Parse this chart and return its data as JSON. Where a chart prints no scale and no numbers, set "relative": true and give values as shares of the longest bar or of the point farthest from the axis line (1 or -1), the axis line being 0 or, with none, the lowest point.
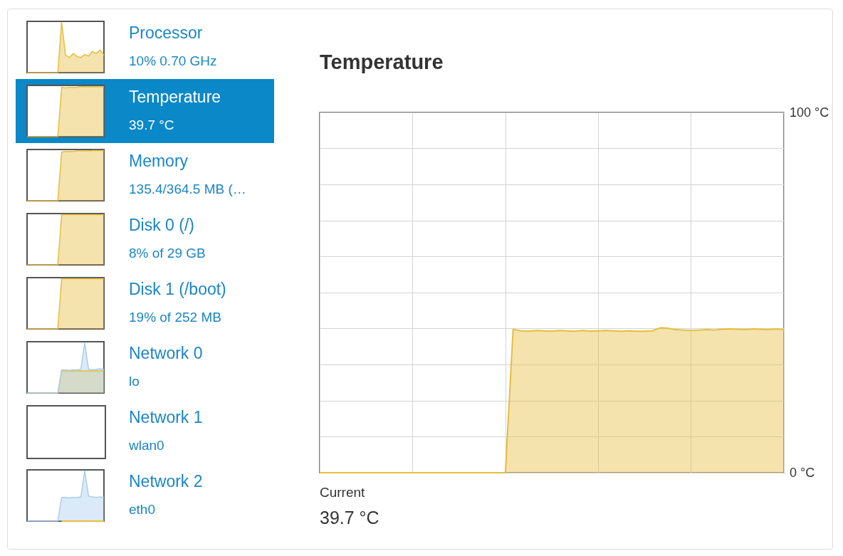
{
  "chart_data": [
    {
      "type": "area",
      "title": "Temperature",
      "annotations": [
        "Current",
        "39.7 °C"
      ],
      "tick_labels": "y",
      "grid": true,
      "color": "#e6bd3d",
      "categories": [
        null,
        null,
        null,
        null,
        null,
        null,
        null,
        null,
        null,
        null,
        null,
        null,
        null,
        null,
        null,
        null,
        null,
        null,
        null,
        null,
        null,
        null,
        null,
        null,
        null,
        null,
        null,
        null,
        null,
        null,
        null,
        null,
        null,
        null,
        null,
        null,
        null,
        null,
        null,
        null,
        null,
        null,
        null,
        null,
        null,
        null,
        null,
        null,
        null,
        null,
        null,
        null,
        null,
        null,
        null,
        null,
        null,
        null,
        null,
        null,
        null
      ],
      "values": [
        0,
        0,
        0,
        0,
        0,
        0,
        0,
        0,
        0,
        0,
        0,
        0,
        0,
        0,
        0,
        0,
        0,
        0,
        0,
        0,
        0,
        0,
        0,
        0,
        0,
        39.8,
        39.4,
        39.3,
        39.5,
        39.4,
        39.3,
        39.5,
        39.4,
        39.3,
        39.5,
        39.3,
        39.4,
        39.5,
        39.4,
        39.3,
        39.4,
        39.3,
        39.3,
        39.4,
        40.2,
        40.1,
        39.7,
        39.6,
        39.5,
        39.6,
        39.7,
        39.6,
        39.8,
        39.9,
        39.8,
        39.7,
        39.9,
        39.8,
        39.7,
        39.9,
        39.7
      ],
      "ylim": [
        0,
        100
      ],
      "yticks": [
        {
          "value": 0,
          "label": "0 °C"
        },
        {
          "value": 10,
          "label": null
        },
        {
          "value": 20,
          "label": null
        },
        {
          "value": 30,
          "label": null
        },
        {
          "value": 40,
          "label": null
        },
        {
          "value": 50,
          "label": null
        },
        {
          "value": 60,
          "label": null
        },
        {
          "value": 70,
          "label": null
        },
        {
          "value": 80,
          "label": null
        },
        {
          "value": 90,
          "label": null
        },
        {
          "value": 100,
          "label": "100 °C"
        }
      ]
    },
    {
      "type": "area",
      "relative": true,
      "color": "#e6bd3d",
      "categories": [
        null,
        null,
        null,
        null,
        null,
        null,
        null,
        null,
        null,
        null,
        null,
        null,
        null,
        null,
        null,
        null,
        null,
        null,
        null,
        null,
        null
      ],
      "values": [
        0,
        0,
        0,
        0,
        0,
        0,
        0,
        0,
        0,
        1,
        0.35,
        0.3,
        0.38,
        0.32,
        0.3,
        0.36,
        0.33,
        0.42,
        0.38,
        0.45,
        0.35
      ]
    },
    {
      "type": "other",
      "title": "Processor",
      "subtitle": "10% 0.70 GHz"
    },
    {
      "type": "area",
      "relative": true,
      "color": "#e6bd3d",
      "categories": [
        null,
        null,
        null,
        null,
        null,
        null,
        null,
        null,
        null,
        null,
        null,
        null,
        null,
        null,
        null,
        null,
        null,
        null,
        null,
        null,
        null
      ],
      "values": [
        0,
        0,
        0,
        0,
        0,
        0,
        0,
        0,
        0,
        0.98,
        0.97,
        0.98,
        0.98,
        0.98,
        1,
        0.99,
        0.99,
        0.99,
        0.99,
        0.99,
        0.99
      ]
    },
    {
      "type": "other",
      "title": "Temperature",
      "subtitle": "39.7 °C"
    },
    {
      "type": "area",
      "relative": true,
      "color": "#e6bd3d",
      "categories": [
        null,
        null,
        null,
        null,
        null,
        null,
        null,
        null,
        null,
        null,
        null,
        null,
        null,
        null,
        null,
        null,
        null,
        null,
        null,
        null,
        null
      ],
      "values": [
        0,
        0,
        0,
        0,
        0,
        0,
        0,
        0,
        0,
        0.97,
        0.98,
        0.98,
        0.98,
        0.99,
        0.99,
        0.99,
        0.99,
        1,
        1,
        1,
        1
      ]
    },
    {
      "type": "other",
      "title": "Memory",
      "subtitle": "135.4/364.5 MB (…"
    },
    {
      "type": "area",
      "relative": true,
      "color": "#e6bd3d",
      "categories": [
        null,
        null,
        null,
        null,
        null,
        null,
        null,
        null,
        null,
        null,
        null,
        null,
        null,
        null,
        null,
        null,
        null,
        null,
        null,
        null,
        null
      ],
      "values": [
        0,
        0,
        0,
        0,
        0,
        0,
        0,
        0,
        0,
        1,
        1,
        1,
        1,
        1,
        1,
        1,
        1,
        1,
        1,
        1,
        1
      ]
    },
    {
      "type": "other",
      "title": "Disk 0 (/)",
      "subtitle": "8% of 29 GB"
    },
    {
      "type": "area",
      "relative": true,
      "color": "#e6bd3d",
      "categories": [
        null,
        null,
        null,
        null,
        null,
        null,
        null,
        null,
        null,
        null,
        null,
        null,
        null,
        null,
        null,
        null,
        null,
        null,
        null,
        null,
        null
      ],
      "values": [
        0,
        0,
        0,
        0,
        0,
        0,
        0,
        0,
        0,
        1,
        1,
        1,
        1,
        1,
        1,
        1,
        1,
        1,
        1,
        1,
        1
      ]
    },
    {
      "type": "other",
      "title": "Disk 1 (/boot)",
      "subtitle": "19% of 252 MB"
    },
    {
      "type": "area",
      "relative": true,
      "categories": [
        null,
        null,
        null,
        null,
        null,
        null,
        null,
        null,
        null,
        null,
        null,
        null,
        null,
        null,
        null,
        null,
        null,
        null,
        null,
        null,
        null
      ],
      "series": [
        {
          "color": "#e6bd3d",
          "values": [
            0,
            0,
            0,
            0,
            0,
            0,
            0,
            0,
            0,
            0.44,
            0.44,
            0.44,
            0.44,
            0.44,
            0.44,
            0.44,
            0.44,
            0.44,
            0.44,
            0.44,
            0.44
          ]
        },
        {
          "color": "#a9cdef",
          "values": [
            0,
            0,
            0,
            0,
            0,
            0,
            0,
            0,
            0,
            0.46,
            0.46,
            0.45,
            0.46,
            0.46,
            0.47,
            1,
            0.47,
            0.46,
            0.47,
            0.48,
            0.47
          ]
        }
      ]
    },
    {
      "type": "other",
      "title": "Network 0",
      "subtitle": "lo"
    },
    {
      "type": "other",
      "title": "Network 1",
      "subtitle": "wlan0"
    },
    {
      "type": "area",
      "relative": true,
      "categories": [
        null,
        null,
        null,
        null,
        null,
        null,
        null,
        null,
        null,
        null,
        null,
        null,
        null,
        null,
        null,
        null,
        null,
        null,
        null,
        null,
        null
      ],
      "series": [
        {
          "color": "#a9cdef",
          "values": [
            0,
            0,
            0,
            0,
            0,
            0,
            0,
            0,
            0,
            0.47,
            0.47,
            0.46,
            0.47,
            0.47,
            0.48,
            1,
            0.5,
            0.48,
            0.47,
            0.48,
            0.47
          ]
        },
        {
          "type": "line",
          "color": "#e6bd3d",
          "values": [
            null,
            null,
            null,
            null,
            null,
            null,
            null,
            null,
            null,
            0,
            0,
            0,
            0,
            0,
            0,
            0,
            0,
            0,
            0,
            0,
            0
          ]
        }
      ]
    },
    {
      "type": "other",
      "title": "Network 2",
      "subtitle": "eth0"
    }
  ]
}
